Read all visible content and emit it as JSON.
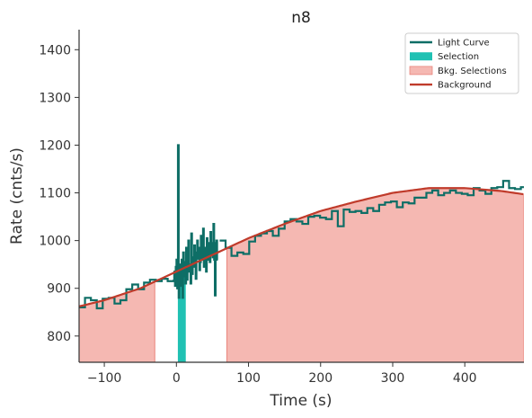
{
  "chart_data": {
    "type": "line",
    "title": "n8",
    "xlabel": "Time (s)",
    "ylabel": "Rate (cnts/s)",
    "xlim": [
      -135,
      482
    ],
    "ylim": [
      745,
      1442
    ],
    "x_ticks": [
      -100,
      0,
      100,
      200,
      300,
      400
    ],
    "y_ticks": [
      800,
      900,
      1000,
      1100,
      1200,
      1300,
      1400
    ],
    "x_tick_labels": [
      "−100",
      "0",
      "100",
      "200",
      "300",
      "400"
    ],
    "y_tick_labels": [
      "800",
      "900",
      "1000",
      "1100",
      "1200",
      "1300",
      "1400"
    ],
    "grid": false,
    "legend_position": "top-right",
    "legend": [
      {
        "label": "Light Curve",
        "kind": "line",
        "color": "#0e6e66"
      },
      {
        "label": "Selection",
        "kind": "patch",
        "color": "#20c1b3"
      },
      {
        "label": "Bkg. Selections",
        "kind": "patch",
        "color": "#f5b8b2"
      },
      {
        "label": "Background",
        "kind": "line",
        "color": "#c03b2b"
      }
    ],
    "colors": {
      "light_curve": "#0e6e66",
      "selection": "#20c1b3",
      "bkg_fill": "#f5b8b2",
      "bkg_edge": "#e9857c",
      "background": "#c03b2b"
    },
    "light_curve_step1": {
      "x_start": -135,
      "dx": 8.192,
      "values": [
        860,
        880,
        875,
        858,
        878,
        880,
        868,
        875,
        898,
        908,
        898,
        912,
        918,
        915,
        920,
        915,
        916
      ]
    },
    "light_curve_fine": {
      "x_start": -4,
      "dx": 1.024,
      "values": [
        935,
        920,
        905,
        945,
        960,
        900,
        1200,
        880,
        950,
        905,
        920,
        960,
        880,
        975,
        925,
        955,
        910,
        985,
        918,
        940,
        1000,
        935,
        950,
        910,
        1015,
        930,
        965,
        945,
        990,
        948,
        920,
        975,
        1000,
        962,
        985,
        938,
        955,
        1010,
        975,
        960,
        1025,
        945,
        985,
        972,
        935,
        1005,
        960,
        995,
        980,
        955,
        1018,
        970,
        995,
        965,
        1035,
        960,
        885,
        995,
        1000,
        960
      ]
    },
    "light_curve_step2": {
      "x_start": 60,
      "dx": 8.192,
      "values": [
        1000,
        985,
        968,
        975,
        972,
        998,
        1010,
        1015,
        1020,
        1010,
        1025,
        1040,
        1045,
        1040,
        1035,
        1050,
        1052,
        1048,
        1045,
        1062,
        1030,
        1065,
        1060,
        1062,
        1058,
        1068,
        1062,
        1075,
        1080,
        1082,
        1070,
        1080,
        1078,
        1090,
        1090,
        1100,
        1105,
        1095,
        1100,
        1105,
        1100,
        1098,
        1095,
        1110,
        1105,
        1098,
        1110,
        1112,
        1125,
        1110,
        1108,
        1112,
        1095,
        1115,
        1105,
        1110,
        1098,
        1115,
        1108,
        1100,
        1105,
        1092,
        1102
      ]
    },
    "selection_range": [
      2,
      13
    ],
    "bkg_selections": [
      [
        -135,
        -30
      ],
      [
        70,
        482
      ]
    ],
    "background_model": {
      "x": [
        -135,
        -100,
        -50,
        0,
        50,
        100,
        150,
        200,
        250,
        300,
        350,
        400,
        450,
        482
      ],
      "y": [
        862,
        875,
        900,
        935,
        970,
        1005,
        1035,
        1062,
        1082,
        1100,
        1110,
        1110,
        1104,
        1097
      ]
    },
    "fine_region": [
      -4,
      58
    ]
  }
}
